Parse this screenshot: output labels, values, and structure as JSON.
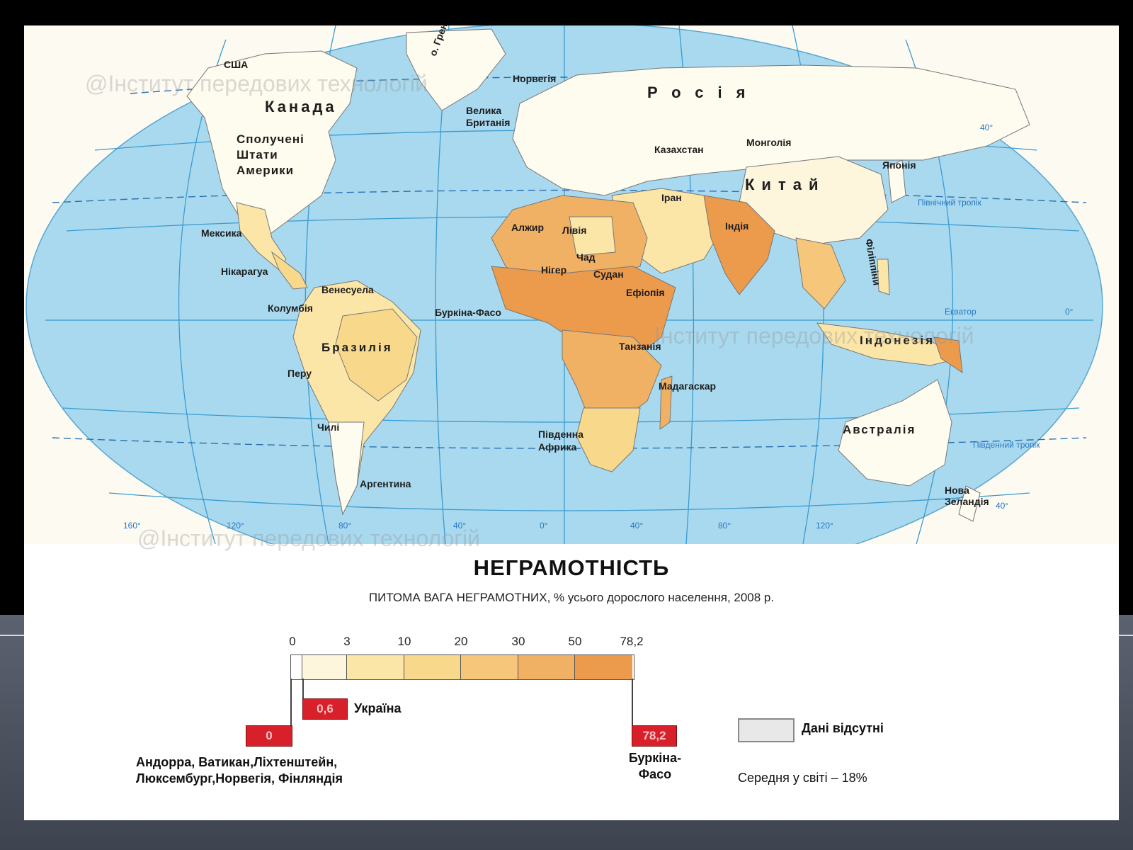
{
  "map": {
    "countries": {
      "usa_alaska": "США",
      "canada": "Канада",
      "greenland": "о. Гренландія",
      "norway": "Норвегія",
      "uk": "Велика Британія",
      "russia": "Росія",
      "usa": "Сполучені Штати Америки",
      "kazakhstan": "Казахстан",
      "mongolia": "Монголія",
      "china": "Китай",
      "japan": "Японія",
      "iran": "Іран",
      "india": "Індія",
      "mexico": "Мексика",
      "algeria": "Алжир",
      "libya": "Лівія",
      "nicaragua": "Нікарагуа",
      "niger": "Нігер",
      "chad": "Чад",
      "sudan": "Судан",
      "venezuela": "Венесуела",
      "colombia": "Колумбія",
      "ethiopia": "Ефіопія",
      "burkina_faso": "Буркіна-Фасо",
      "philippines": "Філіппіни",
      "brazil": "Бразилія",
      "tanzania": "Танзанія",
      "indonesia": "Індонезія",
      "peru": "Перу",
      "madagascar": "Мадагаскар",
      "chile": "Чилі",
      "south_africa": "Південна Африка",
      "australia": "Австралія",
      "argentina": "Аргентина",
      "new_zealand": "Нова Зеландія"
    },
    "lines": {
      "tropic_north": "Північний тропік",
      "tropic_south": "Південний тропік",
      "equator": "Екватор"
    },
    "degrees": {
      "lat_40n": "40°",
      "lat_0": "0°",
      "lat_40s": "40°",
      "lon_160": "160°",
      "lon_120w": "120°",
      "lon_80w": "80°",
      "lon_40w": "40°",
      "lon_0": "0°",
      "lon_40e": "40°",
      "lon_80e": "80°",
      "lon_120e": "120°"
    },
    "watermarks": [
      "@Інститут передових технологій",
      "Інститут передових технологій",
      "@Інститут передових технологій"
    ]
  },
  "legend": {
    "title": "НЕГРАМОТНІСТЬ",
    "subtitle": "ПИТОМА ВАГА НЕГРАМОТНИХ, % усього дорослого населення, 2008 р.",
    "scale_ticks": [
      "0",
      "3",
      "10",
      "20",
      "30",
      "50",
      "78,2"
    ],
    "scale_colors": [
      "#fdf6dd",
      "#fbe6a8",
      "#f8d98c",
      "#f6c77a",
      "#f1b165",
      "#ec9a4c"
    ],
    "ukraine_value": "0,6",
    "ukraine_label": "Україна",
    "min_value": "0",
    "min_countries_line1": "Андорра, Ватикан,Ліхтенштейн,",
    "min_countries_line2": "Люксембург,Норвегія, Фінляндія",
    "max_value": "78,2",
    "max_country_line1": "Буркіна-",
    "max_country_line2": "Фасо",
    "no_data": "Дані відсутні",
    "world_average": "Середня у світі – 18%"
  },
  "colors": {
    "ocean": "#a9d9ef",
    "no_data": "#fefbef",
    "highlight_red": "#d8202a"
  }
}
